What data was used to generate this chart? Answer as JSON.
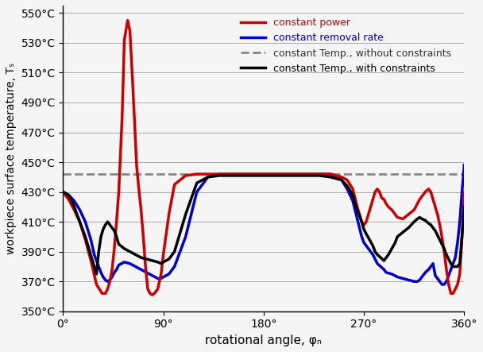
{
  "title": "",
  "xlabel": "rotational angle, φₙ",
  "ylabel": "workpiece surface temperature, Tₛ",
  "xlim": [
    0,
    360
  ],
  "ylim": [
    350,
    555
  ],
  "yticks": [
    350,
    370,
    390,
    410,
    430,
    450,
    470,
    490,
    510,
    530,
    550
  ],
  "xticks": [
    0,
    90,
    180,
    270,
    360
  ],
  "xtick_labels": [
    "0°",
    "90°",
    "180°",
    "270°",
    "360°"
  ],
  "ytick_labels": [
    "350°C",
    "370°C",
    "390°C",
    "410°C",
    "430°C",
    "450°C",
    "470°C",
    "490°C",
    "510°C",
    "530°C",
    "550°C"
  ],
  "dashed_level": 442,
  "colors": {
    "red": "#cc0000",
    "blue": "#0000cc",
    "black": "#000000",
    "gray_dashed": "#888888"
  },
  "legend_labels": [
    "constant power",
    "constant removal rate",
    "constant Temp., without constraints",
    "constant Temp., with constraints"
  ],
  "legend_colors": [
    "#cc0000",
    "#0000cc",
    "#888888",
    "#000000"
  ],
  "legend_text_colors": [
    "#cc0000",
    "#0000cc",
    "#333333",
    "#000000"
  ],
  "legend_ls": [
    "-",
    "-",
    "--",
    "-"
  ],
  "legend_lw": [
    2.5,
    2.5,
    2.0,
    2.5
  ],
  "red_x": [
    0,
    5,
    10,
    15,
    20,
    25,
    30,
    35,
    38,
    40,
    42,
    44,
    46,
    48,
    50,
    53,
    55,
    58,
    60,
    62,
    64,
    66,
    68,
    70,
    72,
    74,
    76,
    78,
    80,
    82,
    85,
    88,
    90,
    95,
    100,
    110,
    120,
    130,
    140,
    150,
    160,
    170,
    180,
    190,
    200,
    210,
    220,
    230,
    240,
    250,
    255,
    260,
    262,
    264,
    266,
    268,
    270,
    272,
    274,
    276,
    278,
    280,
    282,
    284,
    286,
    288,
    290,
    292,
    295,
    298,
    300,
    305,
    310,
    315,
    320,
    325,
    328,
    330,
    332,
    334,
    336,
    338,
    340,
    342,
    344,
    346,
    348,
    350,
    352,
    354,
    356,
    358,
    360
  ],
  "red_y": [
    430,
    425,
    418,
    410,
    398,
    384,
    368,
    362,
    362,
    365,
    370,
    378,
    392,
    410,
    430,
    480,
    532,
    545,
    538,
    510,
    480,
    448,
    432,
    418,
    400,
    380,
    365,
    362,
    361,
    362,
    365,
    375,
    388,
    415,
    435,
    441,
    442,
    442,
    442,
    442,
    442,
    442,
    442,
    442,
    442,
    442,
    442,
    442,
    442,
    440,
    438,
    432,
    426,
    420,
    415,
    410,
    408,
    410,
    415,
    420,
    425,
    430,
    432,
    430,
    426,
    425,
    422,
    420,
    418,
    415,
    413,
    412,
    415,
    418,
    425,
    430,
    432,
    430,
    425,
    420,
    415,
    408,
    400,
    390,
    378,
    368,
    362,
    362,
    365,
    368,
    375,
    400,
    430
  ],
  "blue_x": [
    0,
    5,
    10,
    15,
    20,
    25,
    28,
    30,
    32,
    34,
    36,
    38,
    40,
    42,
    44,
    46,
    48,
    50,
    55,
    60,
    65,
    70,
    75,
    80,
    85,
    88,
    90,
    95,
    100,
    110,
    120,
    130,
    140,
    150,
    160,
    170,
    180,
    190,
    200,
    210,
    220,
    230,
    240,
    250,
    255,
    260,
    262,
    264,
    266,
    268,
    270,
    272,
    274,
    276,
    278,
    280,
    282,
    285,
    288,
    290,
    295,
    300,
    305,
    310,
    315,
    318,
    320,
    322,
    325,
    328,
    330,
    332,
    334,
    336,
    338,
    340,
    342,
    344,
    346,
    348,
    350,
    352,
    354,
    356,
    358,
    360
  ],
  "blue_y": [
    430,
    428,
    424,
    418,
    410,
    398,
    388,
    384,
    380,
    376,
    373,
    371,
    370,
    371,
    373,
    376,
    378,
    381,
    383,
    382,
    380,
    378,
    376,
    374,
    372,
    372,
    373,
    375,
    380,
    400,
    430,
    440,
    442,
    442,
    442,
    442,
    442,
    442,
    442,
    442,
    442,
    442,
    442,
    438,
    432,
    424,
    418,
    412,
    406,
    400,
    396,
    394,
    392,
    390,
    388,
    385,
    382,
    380,
    378,
    376,
    375,
    373,
    372,
    371,
    370,
    370,
    371,
    373,
    376,
    378,
    380,
    382,
    374,
    372,
    370,
    368,
    368,
    370,
    374,
    378,
    382,
    386,
    396,
    410,
    430,
    448
  ],
  "black_x": [
    0,
    5,
    8,
    10,
    12,
    14,
    16,
    18,
    20,
    22,
    24,
    26,
    28,
    30,
    32,
    34,
    36,
    38,
    40,
    42,
    44,
    46,
    48,
    50,
    55,
    60,
    65,
    70,
    75,
    80,
    85,
    88,
    90,
    95,
    100,
    110,
    120,
    130,
    140,
    150,
    160,
    170,
    180,
    190,
    200,
    210,
    220,
    230,
    240,
    250,
    255,
    260,
    262,
    265,
    268,
    270,
    272,
    275,
    278,
    280,
    282,
    285,
    288,
    290,
    292,
    295,
    298,
    300,
    305,
    310,
    315,
    318,
    320,
    322,
    325,
    328,
    330,
    332,
    334,
    336,
    338,
    340,
    342,
    344,
    346,
    348,
    350,
    352,
    354,
    356,
    358,
    360
  ],
  "black_y": [
    430,
    428,
    424,
    420,
    416,
    412,
    408,
    404,
    400,
    395,
    390,
    385,
    380,
    375,
    390,
    400,
    405,
    408,
    410,
    408,
    406,
    404,
    400,
    395,
    392,
    390,
    388,
    386,
    385,
    384,
    383,
    382,
    383,
    385,
    390,
    415,
    436,
    440,
    441,
    441,
    441,
    441,
    441,
    441,
    441,
    441,
    441,
    441,
    440,
    438,
    434,
    428,
    422,
    416,
    410,
    405,
    402,
    398,
    394,
    390,
    388,
    386,
    384,
    386,
    388,
    392,
    396,
    400,
    403,
    406,
    410,
    412,
    413,
    412,
    411,
    409,
    408,
    406,
    404,
    401,
    398,
    395,
    392,
    388,
    385,
    382,
    380,
    380,
    380,
    382,
    400,
    420
  ]
}
